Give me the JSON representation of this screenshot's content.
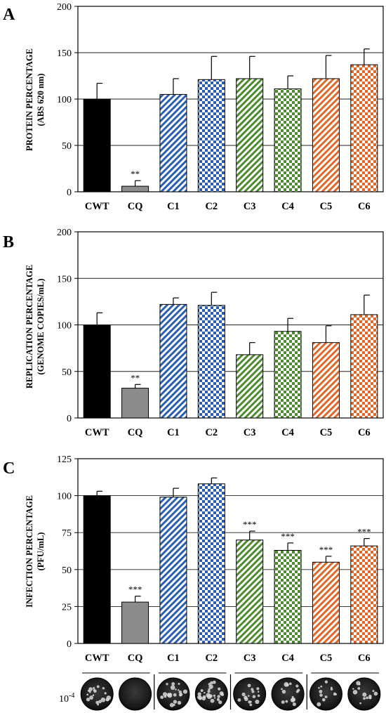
{
  "panels": [
    {
      "letter": "A",
      "ylabel_line1": "PROTEIN PERCENTAGE",
      "ylabel_line2": "(ABS 620 nm)",
      "yticks": [
        0,
        50,
        100,
        150,
        200
      ]
    },
    {
      "letter": "B",
      "ylabel_line1": "REPLICATION PERCENTAGE",
      "ylabel_line2": "(GENOME COPIES/mL)",
      "yticks": [
        0,
        50,
        100,
        150,
        200
      ]
    },
    {
      "letter": "C",
      "ylabel_line1": "INFECTION PERCENTAGE",
      "ylabel_line2": "(PFU/mL)",
      "yticks": [
        0,
        25,
        50,
        75,
        100,
        125
      ]
    }
  ],
  "plaque_dilution_label": "10",
  "plaque_dilution_exponent": "-4",
  "colors": {
    "cwt": "#000000",
    "cq": "#8c8c8c",
    "blue": "#2b5fb3",
    "green": "#4e8a2e",
    "orange": "#e0692a"
  },
  "bar_styles": [
    "solid-black",
    "solid-gray",
    "blue-diagonal",
    "blue-checker",
    "green-diagonal",
    "green-checker",
    "orange-diagonal",
    "orange-checker"
  ],
  "chart_data": [
    {
      "type": "bar",
      "categories": [
        "CWT",
        "CQ",
        "C1",
        "C2",
        "C3",
        "C4",
        "C5",
        "C6"
      ],
      "values": [
        100,
        6,
        105,
        121,
        122,
        111,
        122,
        137
      ],
      "errors": [
        17,
        6,
        17,
        25,
        24,
        14,
        25,
        17
      ],
      "significance": [
        "",
        "**",
        "",
        "",
        "",
        "",
        "",
        ""
      ],
      "title": "",
      "xlabel": "",
      "ylabel": "PROTEIN PERCENTAGE (ABS 620 nm)",
      "ylim": [
        0,
        200
      ],
      "grid": true
    },
    {
      "type": "bar",
      "categories": [
        "CWT",
        "CQ",
        "C1",
        "C2",
        "C3",
        "C4",
        "C5",
        "C6"
      ],
      "values": [
        100,
        32,
        122,
        121,
        68,
        93,
        81,
        111
      ],
      "errors": [
        13,
        4,
        7,
        14,
        13,
        14,
        18,
        21
      ],
      "significance": [
        "",
        "**",
        "",
        "",
        "",
        "",
        "",
        ""
      ],
      "title": "",
      "xlabel": "",
      "ylabel": "REPLICATION PERCENTAGE (GENOME COPIES/mL)",
      "ylim": [
        0,
        200
      ],
      "grid": true
    },
    {
      "type": "bar",
      "categories": [
        "CWT",
        "CQ",
        "C1",
        "C2",
        "C3",
        "C4",
        "C5",
        "C6"
      ],
      "values": [
        100,
        28,
        99,
        108,
        70,
        63,
        55,
        66
      ],
      "errors": [
        3,
        4,
        6,
        4,
        6,
        5,
        4,
        5
      ],
      "significance": [
        "",
        "***",
        "",
        "",
        "***",
        "***",
        "***",
        "***"
      ],
      "title": "",
      "xlabel": "",
      "ylabel": "INFECTION PERCENTAGE (PFU/mL)",
      "ylim": [
        0,
        125
      ],
      "grid": true
    }
  ]
}
